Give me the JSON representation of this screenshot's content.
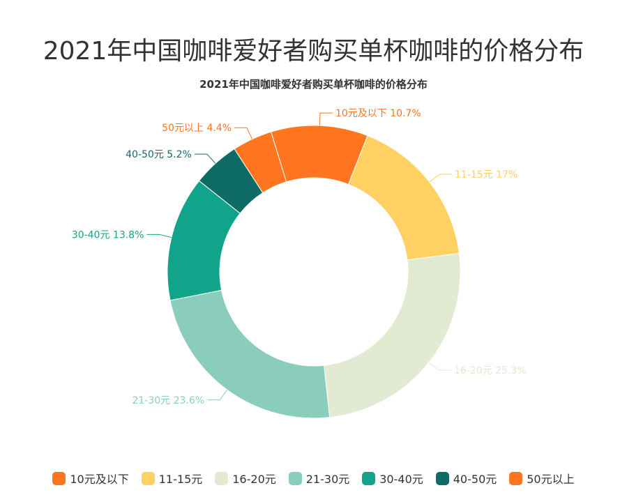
{
  "title": "2021年中国咖啡爱好者购买单杯咖啡的价格分布",
  "subtitle": "2021年中国咖啡爱好者购买单杯咖啡的价格分布",
  "chart_data": {
    "type": "pie",
    "variant": "donut",
    "title": "2021年中国咖啡爱好者购买单杯咖啡的价格分布",
    "legend_position": "bottom",
    "slices": [
      {
        "label": "10元及以下",
        "value": 10.7,
        "label_text": "10元及以下 10.7%",
        "color": "#FF7520"
      },
      {
        "label": "11-15元",
        "value": 17,
        "label_text": "11-15元 17%",
        "color": "#FFD062"
      },
      {
        "label": "16-20元",
        "value": 25.3,
        "label_text": "16-20元 25.3%",
        "color": "#E2EAD2"
      },
      {
        "label": "21-30元",
        "value": 23.6,
        "label_text": "21-30元 23.6%",
        "color": "#8BCDBC"
      },
      {
        "label": "30-40元",
        "value": 13.8,
        "label_text": "30-40元 13.8%",
        "color": "#12A48A"
      },
      {
        "label": "40-50元",
        "value": 5.2,
        "label_text": "40-50元 5.2%",
        "color": "#0E6B66"
      },
      {
        "label": "50元以上",
        "value": 4.4,
        "label_text": "50元以上 4.4%",
        "color": "#FF7520"
      }
    ]
  }
}
